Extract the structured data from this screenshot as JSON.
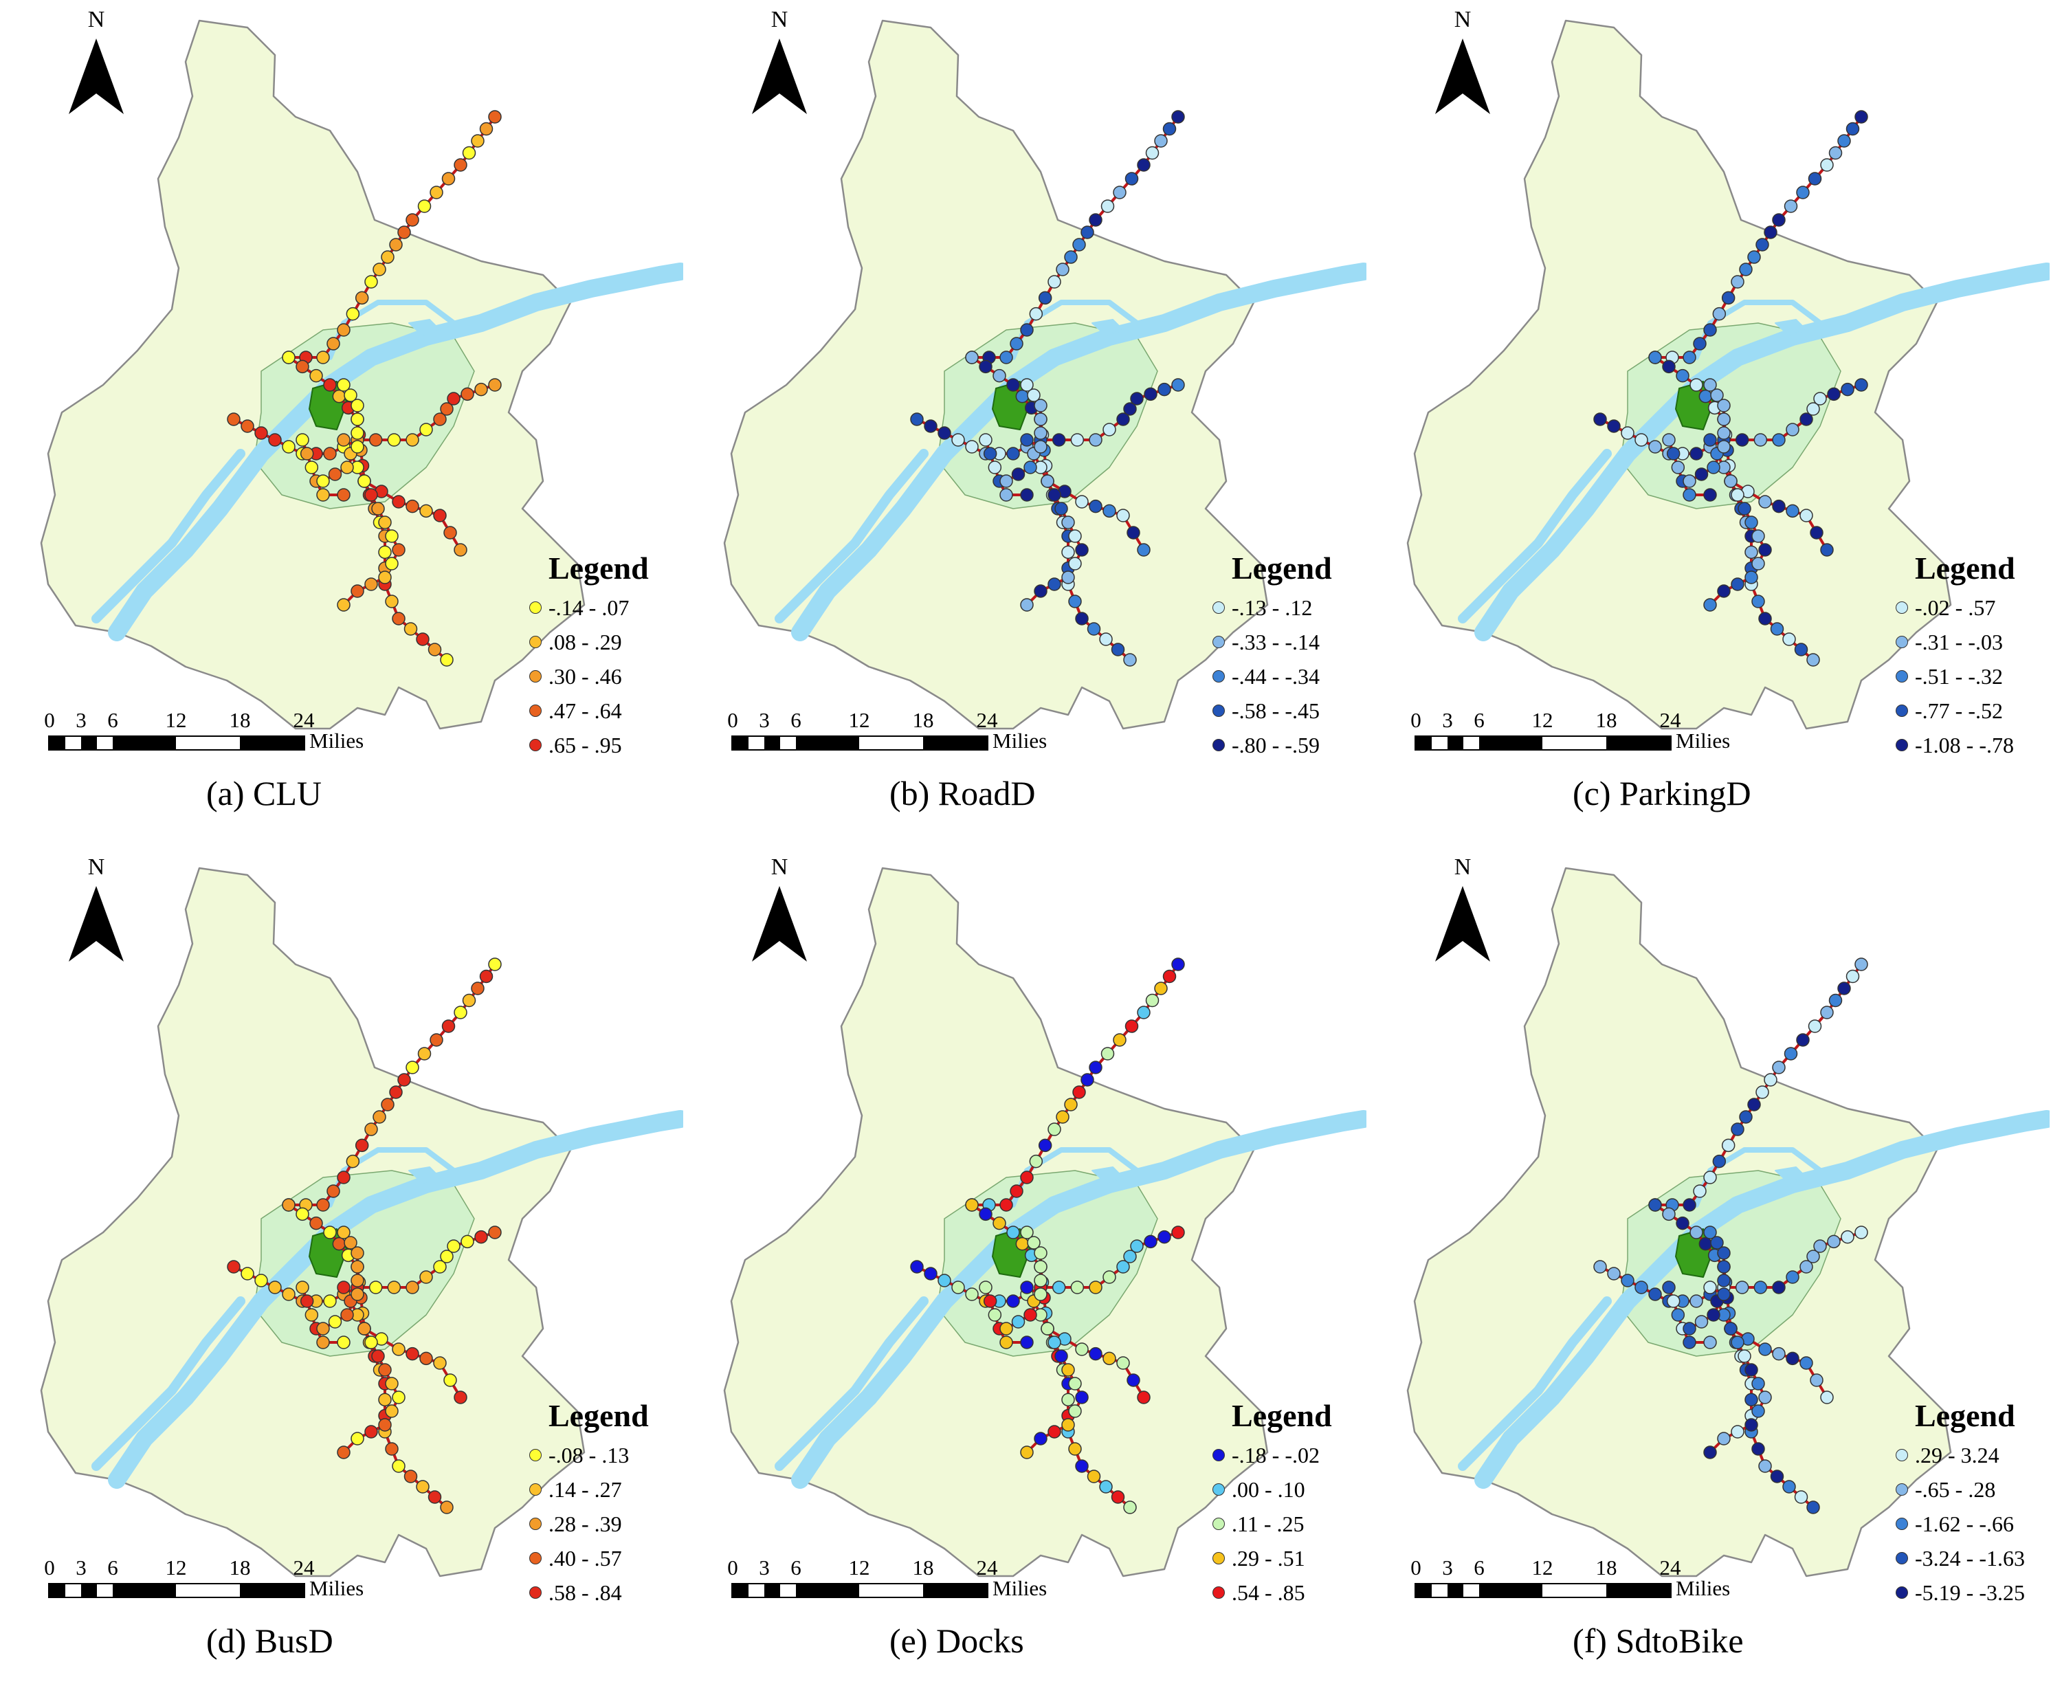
{
  "north_label": "N",
  "scale": {
    "ticks": [
      "0",
      "3",
      "6",
      "12",
      "18",
      "24"
    ],
    "unit": "Milies"
  },
  "legend_title": "Legend",
  "colors": {
    "land": "#f1f9d8",
    "urban": "#d2f2cc",
    "core": "#3aa01c",
    "river": "#9ddcf5",
    "metro_line": "#c0171b"
  },
  "panels": [
    {
      "caption": "(a) CLU",
      "legend": [
        {
          "label": "-.14 - .07",
          "color": "#ffff33"
        },
        {
          "label": ".08 - .29",
          "color": "#fbc02d"
        },
        {
          "label": ".30 - .46",
          "color": "#f39c2a"
        },
        {
          "label": ".47 - .64",
          "color": "#e8621f"
        },
        {
          "label": ".65 - .95",
          "color": "#e22a1c"
        }
      ]
    },
    {
      "caption": "(b) RoadD",
      "legend": [
        {
          "label": "-.13 - .12",
          "color": "#c9edf7"
        },
        {
          "label": "-.33 - -.14",
          "color": "#87b8e8"
        },
        {
          "label": "-.44 - -.34",
          "color": "#3c82d6"
        },
        {
          "label": "-.58 - -.45",
          "color": "#2255b8"
        },
        {
          "label": "-.80 - -.59",
          "color": "#14208a"
        }
      ]
    },
    {
      "caption": "(c) ParkingD",
      "legend": [
        {
          "label": "-.02 - .57",
          "color": "#c9edf7"
        },
        {
          "label": "-.31 - -.03",
          "color": "#87b8e8"
        },
        {
          "label": "-.51 - -.32",
          "color": "#3c82d6"
        },
        {
          "label": "-.77 - -.52",
          "color": "#2255b8"
        },
        {
          "label": "-1.08 - -.78",
          "color": "#14208a"
        }
      ]
    },
    {
      "caption": "(d) BusD",
      "legend": [
        {
          "label": "-.08 - .13",
          "color": "#ffff33"
        },
        {
          "label": ".14 - .27",
          "color": "#fbc02d"
        },
        {
          "label": ".28 - .39",
          "color": "#f39c2a"
        },
        {
          "label": ".40 - .57",
          "color": "#e8621f"
        },
        {
          "label": ".58 - .84",
          "color": "#e22a1c"
        }
      ]
    },
    {
      "caption": "(e) Docks",
      "legend": [
        {
          "label": "-.18 - -.02",
          "color": "#1414dc"
        },
        {
          "label": ".00 - .10",
          "color": "#5bc8f0"
        },
        {
          "label": ".11 - .25",
          "color": "#c8f5b4"
        },
        {
          "label": ".29 - .51",
          "color": "#f6c21c"
        },
        {
          "label": ".54 - .85",
          "color": "#e8181c"
        }
      ]
    },
    {
      "caption": "(f) SdtoBike",
      "legend": [
        {
          "label": ".29 - 3.24",
          "color": "#c9edf7"
        },
        {
          "label": "-.65 - .28",
          "color": "#87b8e8"
        },
        {
          "label": "-1.62 - -.66",
          "color": "#3c82d6"
        },
        {
          "label": "-3.24 - -1.63",
          "color": "#2255b8"
        },
        {
          "label": "-5.19 - -3.25",
          "color": "#14208a"
        }
      ]
    }
  ]
}
